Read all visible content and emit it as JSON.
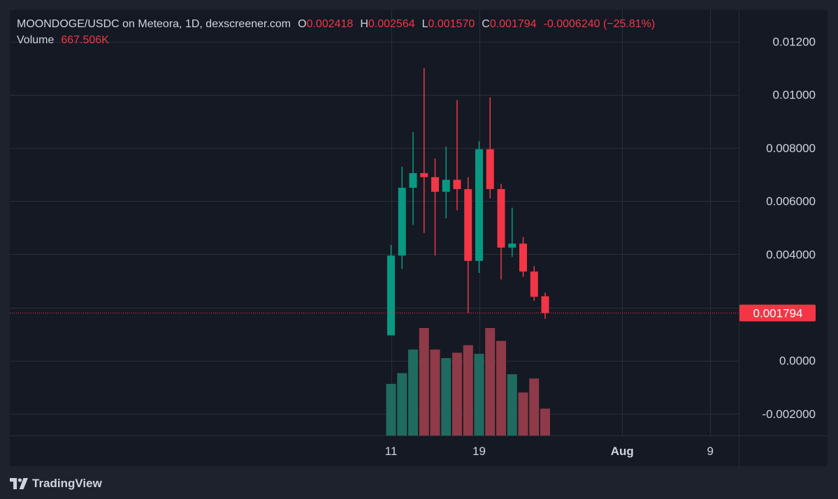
{
  "legend": {
    "symbol": "MOONDOGE/USDC on Meteora, 1D, dexscreener.com",
    "o_label": "O",
    "o_value": "0.002418",
    "h_label": "H",
    "h_value": "0.002564",
    "l_label": "L",
    "l_value": "0.001570",
    "c_label": "C",
    "c_value": "0.001794",
    "change": "-0.0006240 (−25.81%)",
    "volume_label": "Volume",
    "volume_value": "667.506K"
  },
  "footer": {
    "brand": "TradingView"
  },
  "colors": {
    "up": "#089981",
    "down": "#f23645",
    "up_volume": "#1f6b5f",
    "down_volume": "#8e3a48",
    "grid": "#2a2e39",
    "text": "#d1d4dc"
  },
  "chart_data": {
    "type": "candlestick",
    "y_axis_ticks": [
      "0.01200",
      "0.01000",
      "0.008000",
      "0.006000",
      "0.004000",
      "0.0000",
      "-0.002000"
    ],
    "y_tick_values": [
      0.012,
      0.01,
      0.008,
      0.006,
      0.004,
      0.0,
      -0.002
    ],
    "x_axis_ticks": [
      "11",
      "19",
      "Aug",
      "9"
    ],
    "x_tick_days": [
      11,
      19,
      32,
      40
    ],
    "last_price_label": "0.001794",
    "last_price": 0.001794,
    "candles": [
      {
        "day": 11,
        "o": 0.00095,
        "h": 0.00435,
        "l": 0.00095,
        "c": 0.00395
      },
      {
        "day": 12,
        "o": 0.00395,
        "h": 0.0073,
        "l": 0.00345,
        "c": 0.0065
      },
      {
        "day": 13,
        "o": 0.0065,
        "h": 0.0086,
        "l": 0.0051,
        "c": 0.00705
      },
      {
        "day": 14,
        "o": 0.00705,
        "h": 0.011,
        "l": 0.0048,
        "c": 0.0069
      },
      {
        "day": 15,
        "o": 0.0069,
        "h": 0.0076,
        "l": 0.00395,
        "c": 0.00635
      },
      {
        "day": 16,
        "o": 0.00635,
        "h": 0.00805,
        "l": 0.00535,
        "c": 0.0068
      },
      {
        "day": 17,
        "o": 0.0068,
        "h": 0.0098,
        "l": 0.00565,
        "c": 0.00645
      },
      {
        "day": 18,
        "o": 0.00645,
        "h": 0.0069,
        "l": 0.0018,
        "c": 0.00375
      },
      {
        "day": 19,
        "o": 0.00375,
        "h": 0.00825,
        "l": 0.0033,
        "c": 0.00795
      },
      {
        "day": 20,
        "o": 0.00795,
        "h": 0.0099,
        "l": 0.0061,
        "c": 0.00645
      },
      {
        "day": 21,
        "o": 0.00645,
        "h": 0.00665,
        "l": 0.00305,
        "c": 0.00425
      },
      {
        "day": 22,
        "o": 0.00425,
        "h": 0.00575,
        "l": 0.0039,
        "c": 0.0044
      },
      {
        "day": 23,
        "o": 0.0044,
        "h": 0.00465,
        "l": 0.00315,
        "c": 0.00335
      },
      {
        "day": 24,
        "o": 0.00335,
        "h": 0.00355,
        "l": 0.00225,
        "c": 0.0024
      },
      {
        "day": 25,
        "o": 0.00242,
        "h": 0.00256,
        "l": 0.00157,
        "c": 0.00179
      }
    ],
    "volume_scale_note": "Volume bars shown without a labeled scale; relative heights only",
    "volume_relative": [
      0.48,
      0.58,
      0.8,
      1.0,
      0.8,
      0.72,
      0.77,
      0.84,
      0.76,
      1.0,
      0.88,
      0.57,
      0.4,
      0.53,
      0.25
    ]
  }
}
